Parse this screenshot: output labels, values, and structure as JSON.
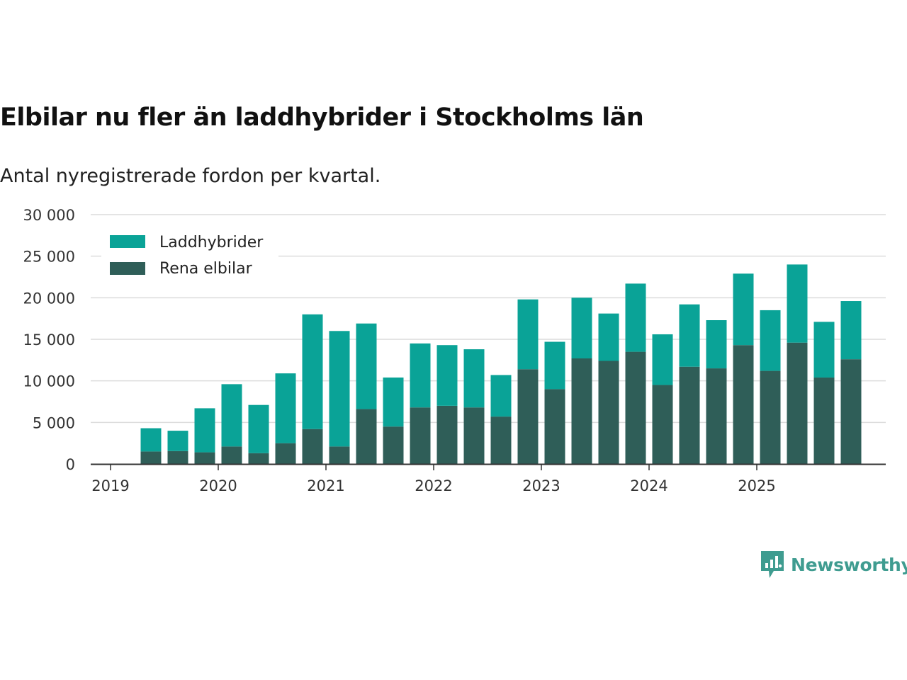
{
  "colors": {
    "phev": "#0aa397",
    "bev": "#2f5e58",
    "grid": "#dcdcdc",
    "axis": "#333333",
    "brand": "#3f9c90"
  },
  "brand": {
    "name": "Newsworthy",
    "icon": "bar-chart-speech-bubble-icon"
  },
  "chart_data": {
    "type": "bar",
    "stacked": true,
    "title": "Elbilar nu fler än laddhybrider i Stockholms län",
    "subtitle": "Antal nyregistrerade fordon per kvartal.",
    "xlabel": "",
    "ylabel": "",
    "ylim": [
      0,
      30000
    ],
    "yticks": [
      0,
      5000,
      10000,
      15000,
      20000,
      25000,
      30000
    ],
    "ytick_labels": [
      "0",
      "5 000",
      "10 000",
      "15 000",
      "20 000",
      "25 000",
      "30 000"
    ],
    "xtick_labels": [
      "2019",
      "2020",
      "2021",
      "2022",
      "2023",
      "2024",
      "2025"
    ],
    "legend_position": "top-left",
    "categories": [
      "2019 Q2",
      "2019 Q3",
      "2019 Q4",
      "2020 Q1",
      "2020 Q2",
      "2020 Q3",
      "2020 Q4",
      "2021 Q1",
      "2021 Q2",
      "2021 Q3",
      "2021 Q4",
      "2022 Q1",
      "2022 Q2",
      "2022 Q3",
      "2022 Q4",
      "2023 Q1",
      "2023 Q2",
      "2023 Q3",
      "2023 Q4",
      "2024 Q1",
      "2024 Q2",
      "2024 Q3",
      "2024 Q4",
      "2025 Q1",
      "2025 Q2",
      "2025 Q3",
      "2025 Q4"
    ],
    "series": [
      {
        "name": "Rena elbilar",
        "values": [
          1500,
          1550,
          1400,
          2100,
          1300,
          2500,
          4200,
          2100,
          6600,
          4500,
          6800,
          7000,
          6800,
          5700,
          11400,
          9000,
          12700,
          12400,
          13500,
          9500,
          11700,
          11500,
          14300,
          11200,
          14600,
          10400,
          12600
        ]
      },
      {
        "name": "Laddhybrider",
        "values": [
          2800,
          2450,
          5300,
          7500,
          5800,
          8400,
          13800,
          13900,
          10300,
          5900,
          7700,
          7300,
          7000,
          5000,
          8400,
          5700,
          7300,
          5700,
          8200,
          6100,
          7500,
          5800,
          8600,
          7300,
          9400,
          6700,
          7000
        ]
      }
    ]
  }
}
